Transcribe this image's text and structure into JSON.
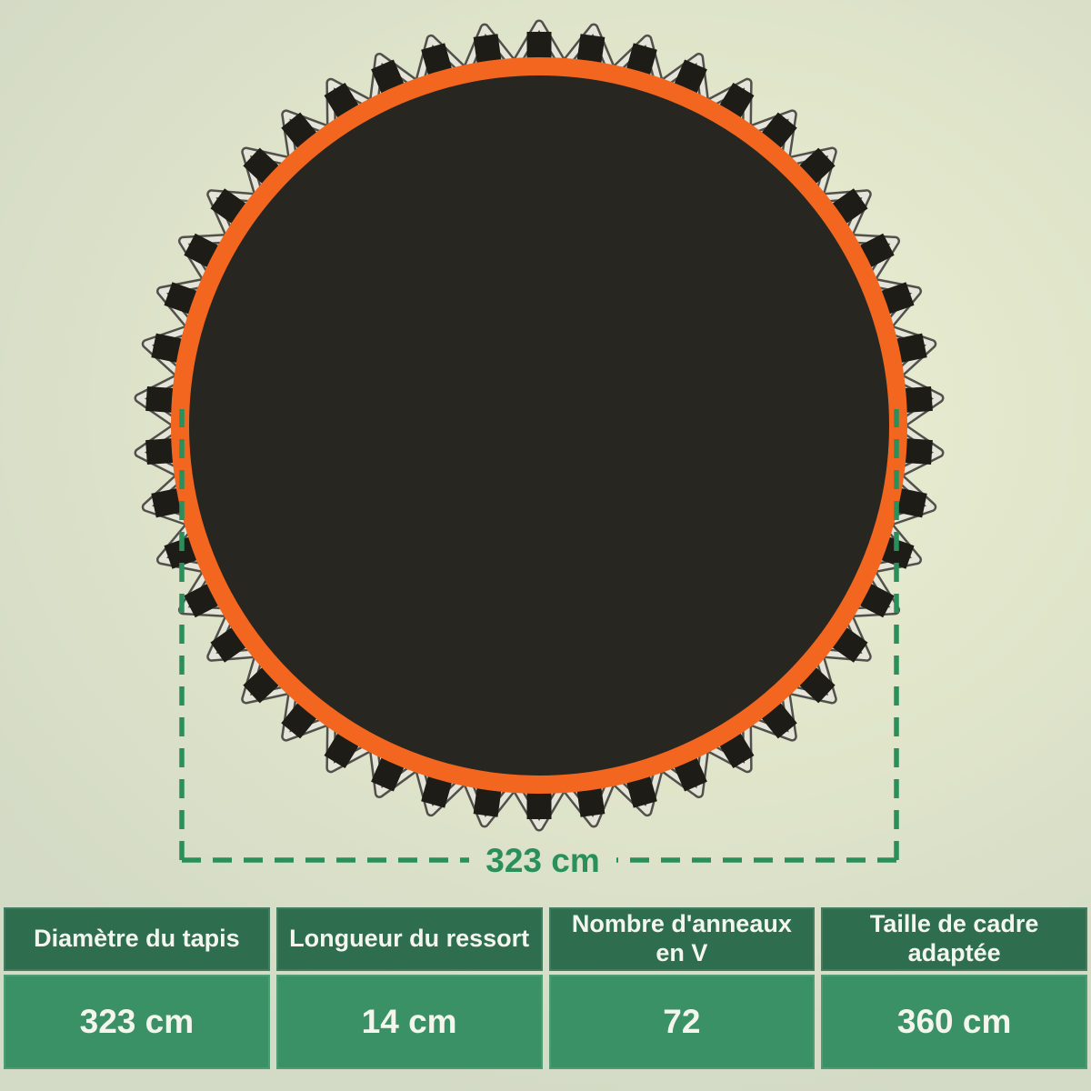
{
  "measurement": {
    "label": "323 cm"
  },
  "spec_table": {
    "columns": [
      {
        "header": "Diamètre du tapis",
        "value": "323 cm"
      },
      {
        "header": "Longueur du ressort",
        "value": "14 cm"
      },
      {
        "header": "Nombre d'anneaux en V",
        "value": "72"
      },
      {
        "header": "Taille de cadre adaptée",
        "value": "360 cm"
      }
    ]
  },
  "figure": {
    "description": "Top view of a round trampoline jumping mat with orange edge band and triangular V-rings on black straps around the perimeter",
    "rings_drawn": 46,
    "colors": {
      "background_center": "#ecefd5",
      "background_mid": "#e1e6cb",
      "background_corner": "#d3dac5",
      "mat": "#272620",
      "mat_edge_orange": "#f2661f",
      "strap": "#1d1c17",
      "ring_wire_light": "#e4e5d8",
      "ring_wire_outline": "#51504a",
      "dimension_green": "#2b8f5c",
      "table_header_bg": "#2e6e4f",
      "table_value_bg": "#3a9165",
      "table_text": "#f4f6ee"
    }
  }
}
